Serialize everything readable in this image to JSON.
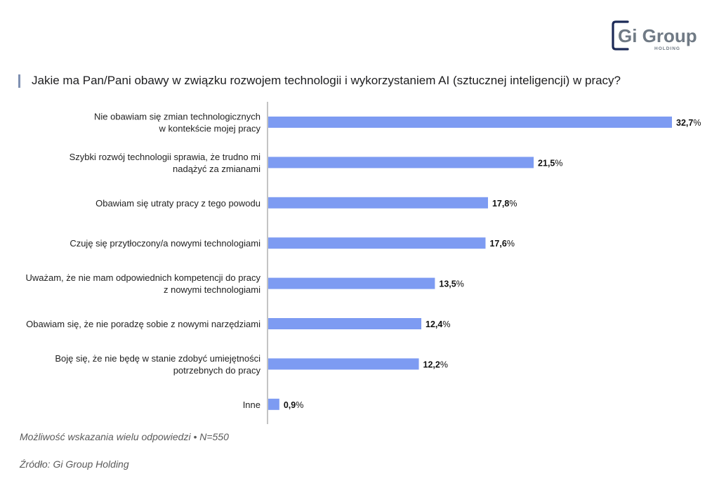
{
  "brand": {
    "logo_main": "Gi Group",
    "logo_sub": "HOLDING",
    "navy": "#1c2a57",
    "gray": "#707a85",
    "bar_color": "#7d9bf2",
    "accent_color": "#7f90b2"
  },
  "chart_data": {
    "type": "bar",
    "orientation": "horizontal",
    "title": "Jakie ma Pan/Pani obawy w związku rozwojem technologii i wykorzystaniem AI (sztucznej inteligencji) w pracy?",
    "categories": [
      [
        "Nie obawiam się zmian technologicznych",
        "w kontekście mojej pracy"
      ],
      [
        "Szybki rozwój technologii sprawia, że trudno mi",
        "nadążyć za zmianami"
      ],
      [
        "Obawiam się utraty pracy z tego powodu"
      ],
      [
        "Czuję się przytłoczony/a nowymi technologiami"
      ],
      [
        "Uważam, że nie mam odpowiednich kompetencji do pracy",
        "z nowymi technologiami"
      ],
      [
        "Obawiam się, że nie poradzę sobie z nowymi narzędziami"
      ],
      [
        "Boję się, że nie będę w stanie zdobyć umiejętności",
        "potrzebnych do pracy"
      ],
      [
        "Inne"
      ]
    ],
    "values": [
      32.7,
      21.5,
      17.8,
      17.6,
      13.5,
      12.4,
      12.2,
      0.9
    ],
    "value_labels": [
      "32,7",
      "21,5",
      "17,8",
      "17,6",
      "13,5",
      "12,4",
      "12,2",
      "0,9"
    ],
    "unit": "%",
    "xlim": [
      0,
      32.7
    ],
    "xlabel": "",
    "ylabel": "",
    "legend": "none",
    "grid": false
  },
  "footer": {
    "note": "Możliwość wskazania wielu odpowiedzi • N=550",
    "source": "Źródło: Gi Group Holding"
  }
}
